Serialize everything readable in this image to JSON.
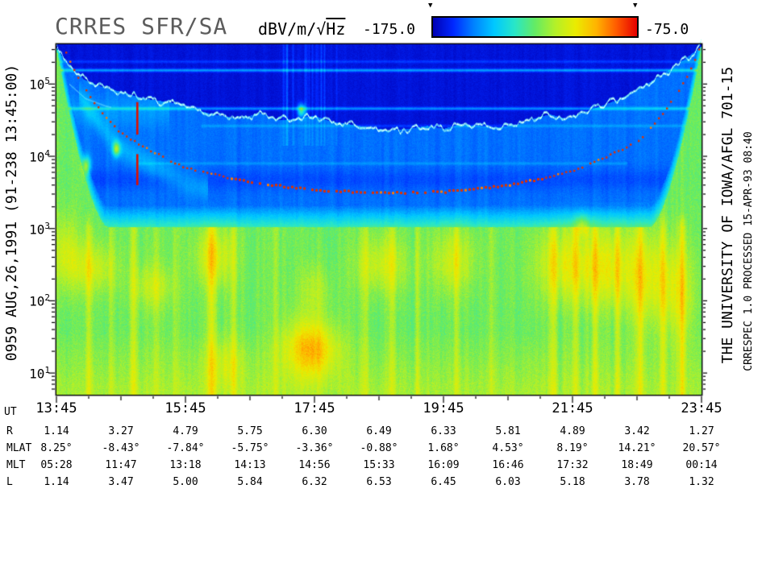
{
  "title": "CRRES SFR/SA",
  "colorbar": {
    "units_prefix": "dBV/m/√",
    "units_overline": "Hz",
    "min_label": "-175.0",
    "max_label": "-75.0",
    "marker_icon": "▼",
    "gradient_stops": [
      "#0000b4",
      "#0028ff",
      "#0082ff",
      "#00c8ff",
      "#28e6c8",
      "#64eb64",
      "#b4f028",
      "#ebeb00",
      "#ffb400",
      "#ff5a00",
      "#e60000"
    ]
  },
  "side_text": {
    "left": "0959   AUG,26,1991   (91-238 13:45:00)",
    "right_outer": "THE UNIVERSITY OF IOWA/AFGL 701-15",
    "right_inner": "CRRESPEC 1.0   PROCESSED 15-APR-93   08:40"
  },
  "chart_data": {
    "type": "heatmap",
    "title": "CRRES SFR/SA",
    "value_units": "dBV/m/√Hz",
    "value_range_db": [
      -175.0,
      -75.0
    ],
    "x_axis": {
      "label": "UT",
      "start_hour": 13.75,
      "end_hour": 23.75,
      "tick_labels": [
        "13:45",
        "15:45",
        "17:45",
        "19:45",
        "21:45",
        "23:45"
      ]
    },
    "y_axis": {
      "quantity": "frequency",
      "scale": "log",
      "log_min": 0.7,
      "log_max": 5.55,
      "decade_exponents": [
        5,
        4,
        3,
        2,
        1
      ]
    },
    "ephemeris_rows": [
      {
        "label": "R",
        "values": [
          "1.14",
          "3.27",
          "4.79",
          "5.75",
          "6.30",
          "6.49",
          "6.33",
          "5.81",
          "4.89",
          "3.42",
          "1.27"
        ]
      },
      {
        "label": "MLAT",
        "values": [
          "8.25°",
          "-8.43°",
          "-7.84°",
          "-5.75°",
          "-3.36°",
          "-0.88°",
          "1.68°",
          "4.53°",
          "8.19°",
          "14.21°",
          "20.57°"
        ]
      },
      {
        "label": "MLT",
        "values": [
          "05:28",
          "11:47",
          "13:18",
          "14:13",
          "14:56",
          "15:33",
          "16:09",
          "16:46",
          "17:32",
          "18:49",
          "00:14"
        ]
      },
      {
        "label": "L",
        "values": [
          "1.14",
          "3.47",
          "5.00",
          "5.84",
          "6.32",
          "6.53",
          "6.45",
          "6.03",
          "5.18",
          "3.78",
          "1.32"
        ]
      }
    ],
    "features": {
      "L_hourly": [
        1.14,
        3.47,
        5.0,
        5.84,
        6.32,
        6.53,
        6.45,
        6.03,
        5.18,
        3.78,
        1.32
      ],
      "fce": {
        "coef_hz": 873000,
        "exp": 3
      },
      "uh_line": [
        [
          13.75,
          5.5
        ],
        [
          13.95,
          5.25
        ],
        [
          14.2,
          5.05
        ],
        [
          14.5,
          4.95
        ],
        [
          14.8,
          4.88
        ],
        [
          15.1,
          4.8
        ],
        [
          15.4,
          4.76
        ],
        [
          15.7,
          4.72
        ],
        [
          16.0,
          4.62
        ],
        [
          16.3,
          4.56
        ],
        [
          16.6,
          4.52
        ],
        [
          16.9,
          4.6
        ],
        [
          17.2,
          4.5
        ],
        [
          17.5,
          4.52
        ],
        [
          17.75,
          4.56
        ],
        [
          18.0,
          4.48
        ],
        [
          18.3,
          4.44
        ],
        [
          18.6,
          4.4
        ],
        [
          18.9,
          4.36
        ],
        [
          19.2,
          4.38
        ],
        [
          19.5,
          4.42
        ],
        [
          19.75,
          4.38
        ],
        [
          20.0,
          4.44
        ],
        [
          20.3,
          4.42
        ],
        [
          20.6,
          4.4
        ],
        [
          20.9,
          4.44
        ],
        [
          21.15,
          4.52
        ],
        [
          21.4,
          4.58
        ],
        [
          21.65,
          4.52
        ],
        [
          21.9,
          4.6
        ],
        [
          22.15,
          4.68
        ],
        [
          22.45,
          4.78
        ],
        [
          22.75,
          4.92
        ],
        [
          23.05,
          5.08
        ],
        [
          23.35,
          5.25
        ],
        [
          23.75,
          5.52
        ]
      ],
      "edge": {
        "lb_base": 3.02,
        "left_t": 14.55,
        "right_t": 22.95,
        "width_h": 0.8,
        "amp": 2.5,
        "pow": 1.6
      },
      "h_lines": [
        [
          5.19,
          16,
          0.022,
          13.75,
          23.75
        ],
        [
          5.31,
          6,
          0.02,
          13.75,
          23.75
        ],
        [
          4.66,
          14,
          0.022,
          13.75,
          23.75
        ],
        [
          4.42,
          6,
          0.02,
          16.0,
          23.75
        ],
        [
          3.9,
          5,
          0.02,
          15.0,
          22.6
        ]
      ],
      "top_streak_zone": [
        17.25,
        18.1
      ],
      "streaks": [
        [
          14.25,
          10,
          0.05
        ],
        [
          14.6,
          8,
          0.04
        ],
        [
          14.95,
          12,
          0.05
        ],
        [
          15.3,
          9,
          0.04
        ],
        [
          15.6,
          8,
          0.05
        ],
        [
          16.15,
          14,
          0.07
        ],
        [
          16.5,
          9,
          0.05
        ],
        [
          17.15,
          8,
          0.05
        ],
        [
          18.55,
          9,
          0.05
        ],
        [
          18.95,
          8,
          0.05
        ],
        [
          19.35,
          7,
          0.04
        ],
        [
          19.95,
          8,
          0.05
        ],
        [
          20.5,
          6,
          0.04
        ],
        [
          21.45,
          10,
          0.06
        ],
        [
          21.8,
          9,
          0.05
        ],
        [
          22.1,
          10,
          0.05
        ],
        [
          22.45,
          9,
          0.05
        ],
        [
          22.8,
          10,
          0.06
        ],
        [
          23.15,
          9,
          0.05
        ],
        [
          23.45,
          12,
          0.06
        ]
      ],
      "blobs": [
        [
          13.9,
          2.7,
          0.2,
          0.5,
          12
        ],
        [
          14.3,
          2.45,
          0.4,
          0.35,
          13
        ],
        [
          15.25,
          2.2,
          0.3,
          0.3,
          11
        ],
        [
          16.2,
          2.6,
          0.3,
          0.4,
          15
        ],
        [
          16.35,
          1.15,
          0.3,
          0.35,
          9
        ],
        [
          17.7,
          1.35,
          0.4,
          0.4,
          27
        ],
        [
          17.75,
          2.15,
          0.25,
          0.35,
          9
        ],
        [
          18.8,
          2.5,
          0.4,
          0.4,
          13
        ],
        [
          19.9,
          2.55,
          0.35,
          0.45,
          13
        ],
        [
          21.6,
          2.5,
          0.45,
          0.5,
          15
        ],
        [
          22.3,
          2.45,
          0.45,
          0.55,
          16
        ],
        [
          22.95,
          2.3,
          0.35,
          0.65,
          15
        ],
        [
          23.4,
          2.1,
          0.25,
          0.7,
          13
        ]
      ],
      "spots": [
        [
          14.22,
          3.88,
          0.06,
          0.12,
          32
        ],
        [
          14.68,
          4.1,
          0.06,
          0.1,
          36
        ],
        [
          17.55,
          4.63,
          0.06,
          0.09,
          38
        ],
        [
          21.9,
          3.05,
          0.12,
          0.15,
          14
        ]
      ],
      "spike": {
        "t": 15.0,
        "segments": [
          [
            4.3,
            4.75
          ],
          [
            3.6,
            4.03
          ]
        ]
      }
    }
  }
}
